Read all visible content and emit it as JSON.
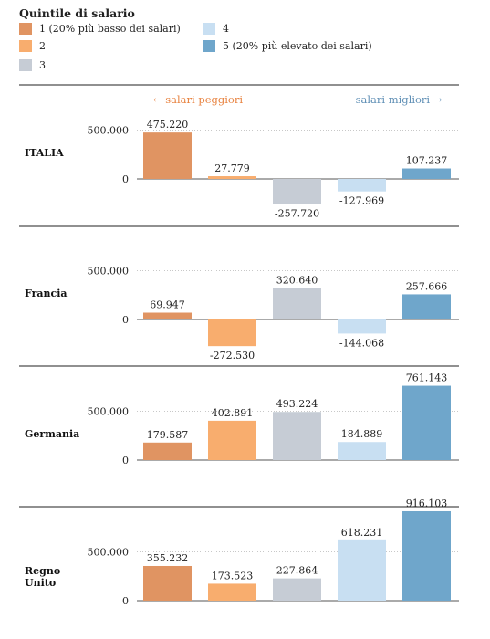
{
  "legend": {
    "title": "Quintile di salario",
    "items": [
      {
        "label": "1 (20% più basso dei salari)",
        "color": "#e09462"
      },
      {
        "label": "2",
        "color": "#f8ad6e"
      },
      {
        "label": "3",
        "color": "#c6ccd5"
      },
      {
        "label": "4",
        "color": "#c8dff2"
      },
      {
        "label": "5 (20% più elevato dei salari)",
        "color": "#6fa6cb"
      }
    ]
  },
  "direction_labels": {
    "worse": "← salari peggiori",
    "worse_color": "#e8823f",
    "better": "salari migliori →",
    "better_color": "#5f8fb5"
  },
  "chart_data": {
    "type": "bar",
    "categories": [
      "1",
      "2",
      "3",
      "4",
      "5"
    ],
    "colors": [
      "#e09462",
      "#f8ad6e",
      "#c6ccd5",
      "#c8dff2",
      "#6fa6cb"
    ],
    "panels": [
      {
        "name": "ITALIA",
        "values": [
          475220,
          27779,
          -257720,
          -127969,
          107237
        ],
        "value_labels": [
          "475.220",
          "27.779",
          "-257.720",
          "-127.969",
          "107.237"
        ],
        "y_tick_values": [
          500000,
          0
        ],
        "y_tick_labels": [
          "500.000",
          "0"
        ]
      },
      {
        "name": "Francia",
        "values": [
          69947,
          -272530,
          320640,
          -144068,
          257666
        ],
        "value_labels": [
          "69.947",
          "-272.530",
          "320.640",
          "-144.068",
          "257.666"
        ],
        "y_tick_values": [
          500000,
          0
        ],
        "y_tick_labels": [
          "500.000",
          "0"
        ]
      },
      {
        "name": "Germania",
        "values": [
          179587,
          402891,
          493224,
          184889,
          761143
        ],
        "value_labels": [
          "179.587",
          "402.891",
          "493.224",
          "184.889",
          "761.143"
        ],
        "y_tick_values": [
          500000,
          0
        ],
        "y_tick_labels": [
          "500.000",
          "0"
        ]
      },
      {
        "name": "Regno Unito",
        "values": [
          355232,
          173523,
          227864,
          618231,
          916103
        ],
        "value_labels": [
          "355.232",
          "173.523",
          "227.864",
          "618.231",
          "916.103"
        ],
        "y_tick_values": [
          500000,
          0
        ],
        "y_tick_labels": [
          "500.000",
          "0"
        ]
      }
    ]
  }
}
